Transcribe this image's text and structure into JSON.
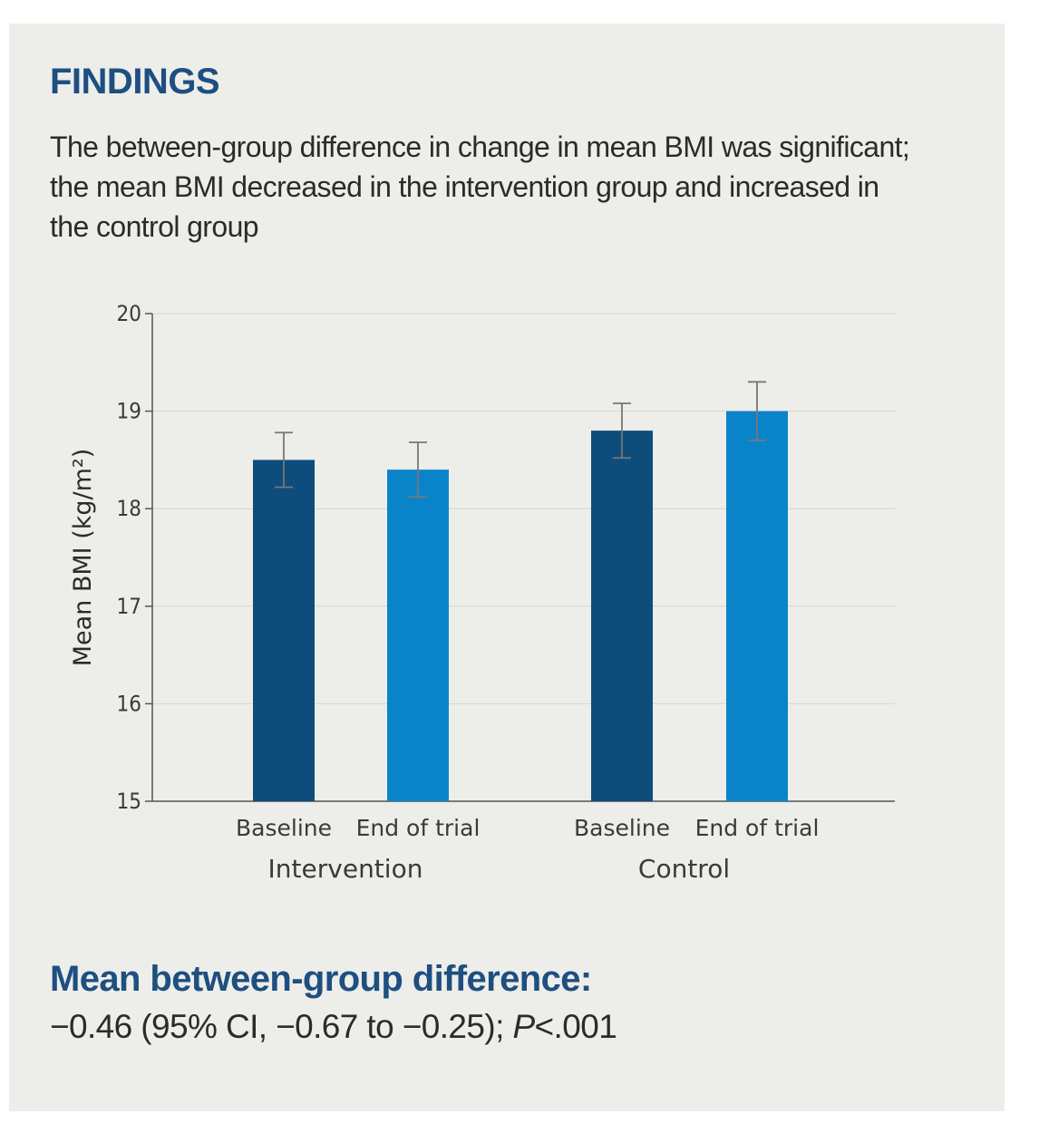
{
  "section_heading": "FINDINGS",
  "summary_text": "The between-group difference in change in mean BMI was significant; the mean BMI decreased in the intervention group and increased in the control group",
  "difference": {
    "title": "Mean between-group difference:",
    "estimate": "−0.46 (95% CI, −0.67 to −0.25); ",
    "p_label": "P",
    "p_value": "<.001"
  },
  "chart_data": {
    "type": "bar",
    "title": "",
    "ylabel": "Mean BMI (kg/m²)",
    "xlabel": "",
    "ylim": [
      15,
      20
    ],
    "yticks": [
      15,
      16,
      17,
      18,
      19,
      20
    ],
    "grid": true,
    "groups": [
      {
        "name": "Intervention",
        "bars": [
          {
            "category": "Baseline",
            "value": 18.5,
            "ci_low": 18.22,
            "ci_high": 18.78,
            "color": "#0e4c7c"
          },
          {
            "category": "End of trial",
            "value": 18.4,
            "ci_low": 18.12,
            "ci_high": 18.68,
            "color": "#0a84c9"
          }
        ]
      },
      {
        "name": "Control",
        "bars": [
          {
            "category": "Baseline",
            "value": 18.8,
            "ci_low": 18.52,
            "ci_high": 19.08,
            "color": "#0e4c7c"
          },
          {
            "category": "End of trial",
            "value": 19.0,
            "ci_low": 18.7,
            "ci_high": 19.3,
            "color": "#0a84c9"
          }
        ]
      }
    ]
  }
}
